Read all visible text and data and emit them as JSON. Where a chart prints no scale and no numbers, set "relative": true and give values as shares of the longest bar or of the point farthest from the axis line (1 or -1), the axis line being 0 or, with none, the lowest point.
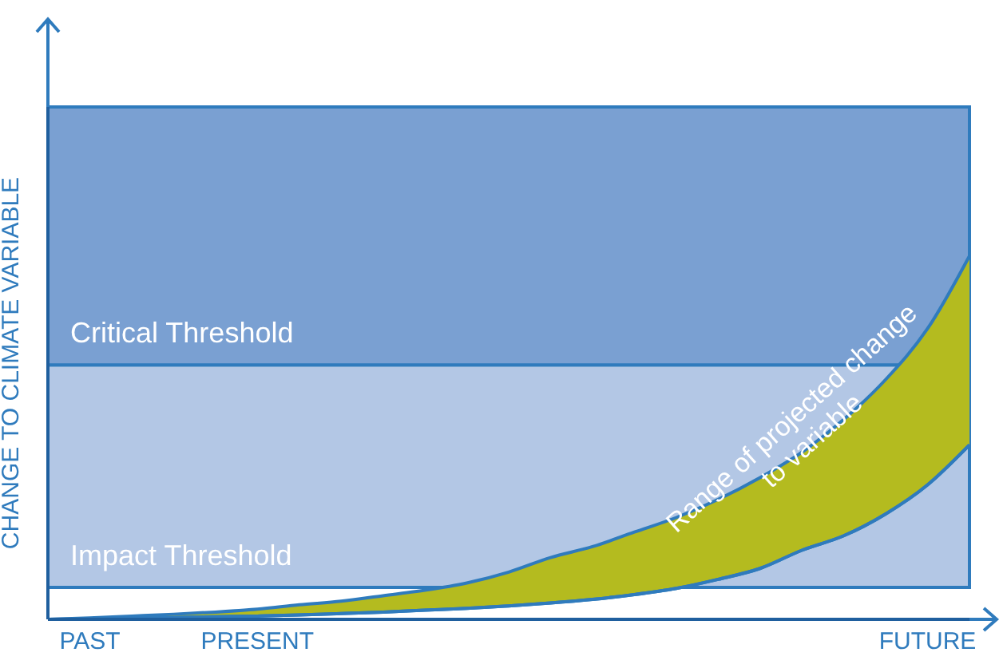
{
  "chart_data": {
    "type": "area",
    "relative": true,
    "ylabel": "CHANGE TO CLIMATE VARIABLE",
    "categories": [
      null,
      "PAST",
      null,
      null,
      null,
      "PRESENT",
      null,
      null,
      null,
      null,
      null,
      null,
      null,
      null,
      null,
      null,
      null,
      null,
      null,
      null,
      null,
      "FUTURE",
      null
    ],
    "series": [
      {
        "type": "line",
        "color": "#2f7bbd",
        "values": [
          0,
          0.001,
          0.003,
          0.005,
          0.007,
          0.009,
          0.012,
          0.016,
          0.02,
          0.025,
          0.03,
          0.037,
          0.045,
          0.055,
          0.068,
          0.085,
          0.11,
          0.14,
          0.19,
          0.23,
          0.29,
          0.37,
          0.48
        ]
      },
      {
        "name": "Range of projected change to variable",
        "color": "#b4bb1f",
        "values": [
          0,
          0.004,
          0.009,
          0.014,
          0.02,
          0.028,
          0.04,
          0.05,
          0.065,
          0.08,
          0.1,
          0.13,
          0.17,
          0.2,
          0.24,
          0.28,
          0.33,
          0.39,
          0.46,
          0.55,
          0.66,
          0.8,
          1.0
        ]
      }
    ],
    "bands": [
      {
        "axis": "y",
        "from": 0.088,
        "to": 0.7,
        "label": "Impact Threshold",
        "color": "#b3c7e5"
      },
      {
        "axis": "y",
        "from": 0.7,
        "to": 1.41,
        "label": "Critical Threshold",
        "color": "#7aa0d2"
      }
    ],
    "grid": false,
    "legend": false
  }
}
